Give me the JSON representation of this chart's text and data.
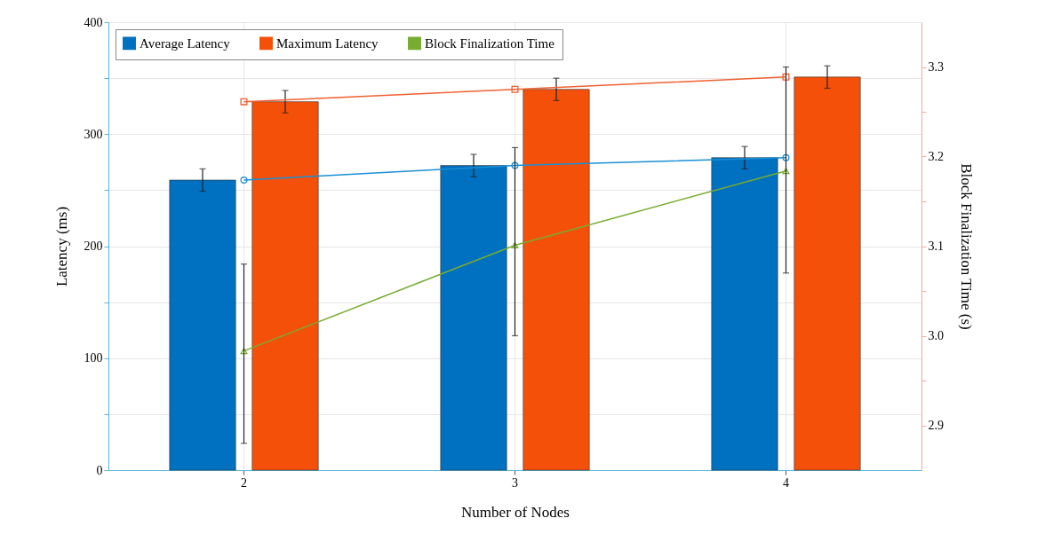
{
  "chart_data": {
    "type": "bar",
    "xlabel": "Number of Nodes",
    "ylabel": "Latency (ms)",
    "y2label": "Block Finalization Time (s)",
    "categories": [
      "2",
      "3",
      "4"
    ],
    "series": [
      {
        "name": "Average Latency",
        "color": "#0070c0",
        "values": [
          259,
          272,
          279
        ],
        "errors": [
          10,
          10,
          10
        ]
      },
      {
        "name": "Maximum Latency",
        "color": "#f5500a",
        "values": [
          329,
          340,
          351
        ],
        "errors": [
          10,
          10,
          10
        ]
      },
      {
        "type": "line",
        "color": "#1a8fd6",
        "marker": "circle",
        "values": [
          259,
          272,
          279
        ]
      },
      {
        "type": "line",
        "color": "#f06030",
        "marker": "square",
        "values": [
          329,
          340,
          351
        ]
      },
      {
        "name": "Block Finalization Time",
        "type": "line",
        "axis": "y2",
        "color": "#77ac30",
        "marker": "triangle",
        "values": [
          2.983,
          3.101,
          3.184
        ],
        "errors": [
          [
            2.88,
            3.08
          ],
          [
            3.0,
            3.21
          ],
          [
            3.07,
            3.3
          ]
        ]
      }
    ],
    "ylim": [
      0,
      400
    ],
    "yticks": [
      0,
      {
        "value": 50,
        "label": null
      },
      100,
      {
        "value": 150,
        "label": null
      },
      200,
      {
        "value": 250,
        "label": null
      },
      300,
      {
        "value": 350,
        "label": null
      },
      400
    ],
    "y2lim": [
      2.85,
      3.35
    ],
    "y2ticks": [
      {
        "value": 2.9,
        "label": "2.9"
      },
      {
        "value": 2.95,
        "label": null
      },
      {
        "value": 3.0,
        "label": "3.0"
      },
      {
        "value": 3.05,
        "label": null
      },
      {
        "value": 3.1,
        "label": "3.1"
      },
      {
        "value": 3.15,
        "label": null
      },
      {
        "value": 3.2,
        "label": "3.2"
      },
      {
        "value": 3.25,
        "label": null
      },
      {
        "value": 3.3,
        "label": "3.3"
      }
    ],
    "grid": true,
    "legend": "top left"
  }
}
